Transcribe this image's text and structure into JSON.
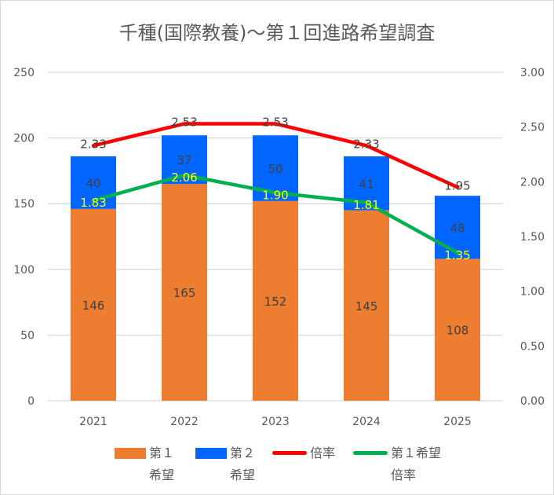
{
  "chart_data": {
    "type": "bar",
    "title": "千種(国際教養)～第１回進路希望調査",
    "categories": [
      "2021",
      "2022",
      "2023",
      "2024",
      "2025"
    ],
    "series": [
      {
        "name": "第１希望",
        "kind": "stacked-bar",
        "axis": "left",
        "color": "#ED7D31",
        "values": [
          146,
          165,
          152,
          145,
          108
        ]
      },
      {
        "name": "第２希望",
        "kind": "stacked-bar",
        "axis": "left",
        "color": "#0066FF",
        "values": [
          40,
          37,
          50,
          41,
          48
        ]
      },
      {
        "name": "倍率",
        "kind": "line",
        "axis": "right",
        "color": "#FF0000",
        "values": [
          2.33,
          2.53,
          2.53,
          2.33,
          1.95
        ],
        "labels": [
          "2.33",
          "2.53",
          "2.53",
          "2.33",
          "1.95"
        ]
      },
      {
        "name": "第１希望倍率",
        "kind": "line",
        "axis": "right",
        "color": "#00B050",
        "values": [
          1.83,
          2.06,
          1.9,
          1.81,
          1.35
        ],
        "labels": [
          "1.83",
          "2.06",
          "1.90",
          "1.81",
          "1.35"
        ]
      }
    ],
    "left_axis": {
      "ylim": [
        0,
        250
      ],
      "ticks": [
        "0",
        "50",
        "100",
        "150",
        "200",
        "250"
      ]
    },
    "right_axis": {
      "ylim": [
        0,
        3
      ],
      "ticks": [
        "0.00",
        "0.50",
        "1.00",
        "1.50",
        "2.00",
        "2.50",
        "3.00"
      ]
    },
    "grid": true,
    "legend_position": "bottom",
    "legend": [
      {
        "line1": "第１",
        "line2": "希望",
        "color": "#ED7D31",
        "shape": "box"
      },
      {
        "line1": "第２",
        "line2": "希望",
        "color": "#0066FF",
        "shape": "box"
      },
      {
        "line1": "倍率",
        "line2": "",
        "color": "#FF0000",
        "shape": "line"
      },
      {
        "line1": "第１希望",
        "line2": "倍率",
        "color": "#00B050",
        "shape": "line"
      }
    ]
  }
}
